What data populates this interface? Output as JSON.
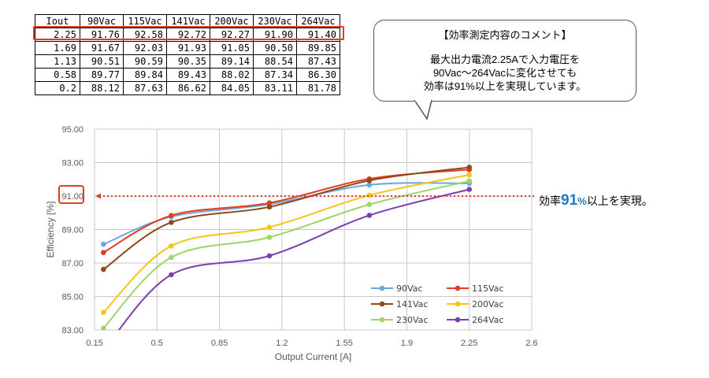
{
  "table": {
    "headers": [
      "Iout",
      "90Vac",
      "115Vac",
      "141Vac",
      "200Vac",
      "230Vac",
      "264Vac"
    ],
    "rows": [
      [
        "2.25",
        "91.76",
        "92.58",
        "92.72",
        "92.27",
        "91.90",
        "91.40"
      ],
      [
        "1.69",
        "91.67",
        "92.03",
        "91.93",
        "91.05",
        "90.50",
        "89.85"
      ],
      [
        "1.13",
        "90.51",
        "90.59",
        "90.35",
        "89.14",
        "88.54",
        "87.43"
      ],
      [
        "0.58",
        "89.77",
        "89.84",
        "89.43",
        "88.02",
        "87.34",
        "86.30"
      ],
      [
        "0.2",
        "88.12",
        "87.63",
        "86.62",
        "84.05",
        "83.11",
        "81.78"
      ]
    ]
  },
  "comment": {
    "title": "【効率測定内容のコメント】",
    "lines": [
      "最大出力電流2.25Aで入力電圧を",
      "90Vac～264Vacに変化させても",
      "効率は91%以上を実現しています。"
    ]
  },
  "callout": {
    "prefix": "効率",
    "value": "91",
    "unit": "%",
    "suffix": "以上を実現。"
  },
  "chart_data": {
    "type": "line",
    "xlabel": "Output Current [A]",
    "ylabel": "Efficiency [%]",
    "xlim": [
      0.15,
      2.6
    ],
    "ylim": [
      83.0,
      95.0
    ],
    "x_ticks": [
      "0.15",
      "0.5",
      "0.85",
      "1.2",
      "1.55",
      "1.9",
      "2.25",
      "2.6"
    ],
    "y_ticks": [
      "83.00",
      "85.00",
      "87.00",
      "89.00",
      "91.00",
      "93.00",
      "95.00"
    ],
    "x": [
      0.2,
      0.58,
      1.13,
      1.69,
      2.25
    ],
    "reference_line": 91.0,
    "grid": true,
    "legend_position": "bottom-right",
    "series": [
      {
        "name": "90Vac",
        "color": "#6aa7dd",
        "values": [
          88.12,
          89.77,
          90.51,
          91.67,
          91.76
        ]
      },
      {
        "name": "115Vac",
        "color": "#e53b1f",
        "values": [
          87.63,
          89.84,
          90.59,
          92.03,
          92.58
        ]
      },
      {
        "name": "141Vac",
        "color": "#8c4a1a",
        "values": [
          86.62,
          89.43,
          90.35,
          91.93,
          92.72
        ]
      },
      {
        "name": "200Vac",
        "color": "#f5c518",
        "values": [
          84.05,
          88.02,
          89.14,
          91.05,
          92.27
        ]
      },
      {
        "name": "230Vac",
        "color": "#9fd46a",
        "values": [
          83.11,
          87.34,
          88.54,
          90.5,
          91.9
        ]
      },
      {
        "name": "264Vac",
        "color": "#7c3fb0",
        "values": [
          81.78,
          86.3,
          87.43,
          89.85,
          91.4
        ]
      }
    ]
  }
}
